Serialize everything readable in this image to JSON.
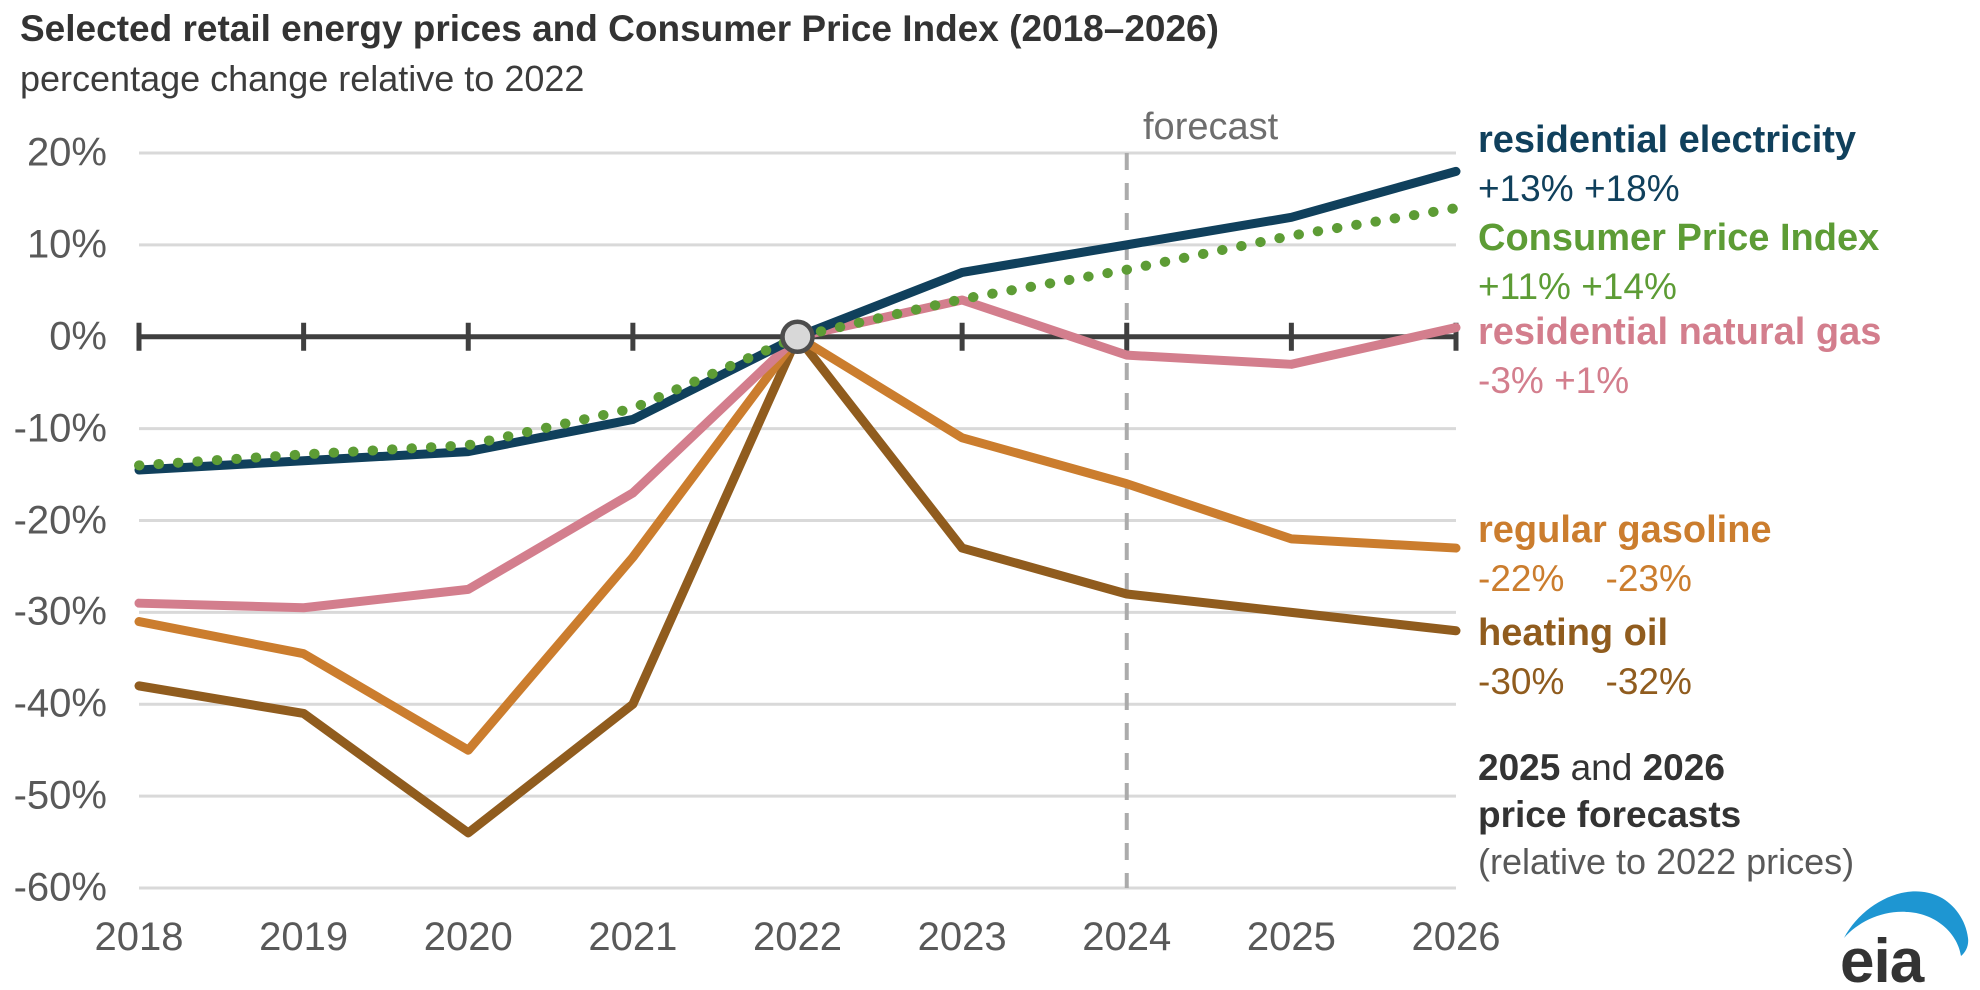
{
  "header": {
    "title": "Selected retail energy prices and Consumer Price Index (2018–2026)",
    "subtitle": "percentage change relative to 2022"
  },
  "chart_data": {
    "type": "line",
    "title": "Selected retail energy prices and Consumer Price Index (2018–2026)",
    "subtitle": "percentage change relative to 2022",
    "x": [
      2018,
      2019,
      2020,
      2021,
      2022,
      2023,
      2024,
      2025,
      2026
    ],
    "x_tick_labels": [
      "2018",
      "2019",
      "2020",
      "2021",
      "2022",
      "2023",
      "2024",
      "2025",
      "2026"
    ],
    "y_tick_labels": [
      "20%",
      "10%",
      "0%",
      "-10%",
      "-20%",
      "-30%",
      "-40%",
      "-50%",
      "-60%"
    ],
    "ylim": [
      -60,
      20
    ],
    "grid": "horizontal only",
    "legend_position": "right",
    "annotations": {
      "forecast_label": "forecast",
      "forecast_line_x": 2024,
      "forecast_line_style": "dashed gray vertical",
      "marker": {
        "x": 2022,
        "y": 0,
        "shape": "circle",
        "fill": "#d8d8d8",
        "stroke": "#4d4d4d"
      }
    },
    "series": [
      {
        "name": "residential electricity",
        "color": "#10405c",
        "style": "solid",
        "values": [
          -14.5,
          -13.5,
          -12.5,
          -9,
          0,
          7,
          10,
          13,
          18
        ],
        "legend_values": "+13% +18%"
      },
      {
        "name": "Consumer Price Index",
        "color": "#5d9c35",
        "style": "dotted",
        "values": [
          -14,
          -12.8,
          -11.8,
          -7.8,
          0,
          4.1,
          7.3,
          11,
          14
        ],
        "legend_values": "+11% +14%"
      },
      {
        "name": "residential natural gas",
        "color": "#d37e8d",
        "style": "solid",
        "values": [
          -29,
          -29.5,
          -27.5,
          -17,
          0,
          4,
          -2,
          -3,
          1
        ],
        "legend_values": "-3% +1%"
      },
      {
        "name": "regular gasoline",
        "color": "#cb7d2e",
        "style": "solid",
        "values": [
          -31,
          -34.5,
          -45,
          -24,
          0,
          -11,
          -16,
          -22,
          -23
        ],
        "legend_values": "-22%    -23%"
      },
      {
        "name": "heating oil",
        "color": "#905c1e",
        "style": "solid",
        "values": [
          -38,
          -41,
          -54,
          -40,
          0,
          -23,
          -28,
          -30,
          -32
        ],
        "legend_values": "-30%    -32%"
      }
    ]
  },
  "footnote": {
    "year1": "2025",
    "and": " and ",
    "year2": "2026",
    "line2": "price forecasts",
    "line3": "(relative to 2022 prices)"
  },
  "logo": {
    "text": "eia",
    "swoosh_color": "#1e96d2",
    "text_color": "#333333"
  },
  "colors": {
    "axis": "#3f3f3f",
    "gridline": "#d9d9d9",
    "forecast_dash": "#ababab",
    "tick_label": "#595959"
  }
}
